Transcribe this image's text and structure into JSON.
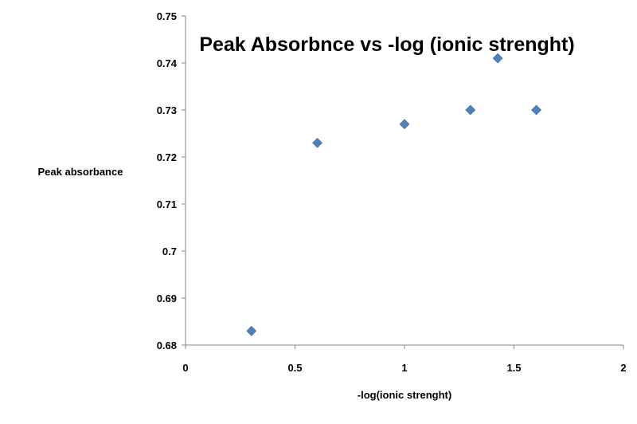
{
  "chart_data": {
    "type": "scatter",
    "title": "Peak Absorbnce vs -log (ionic strenght)",
    "xlabel": "-log(ionic strenght)",
    "ylabel": "Peak absorbance",
    "xlim": [
      0,
      2
    ],
    "ylim": [
      0.68,
      0.75
    ],
    "x_ticks": [
      0,
      0.5,
      1,
      1.5,
      2
    ],
    "x_tick_labels": [
      "0",
      "0.5",
      "1",
      "1.5",
      "2"
    ],
    "y_ticks": [
      0.68,
      0.69,
      0.7,
      0.71,
      0.72,
      0.73,
      0.74,
      0.75
    ],
    "y_tick_labels": [
      "0.68",
      "0.69",
      "0.7",
      "0.71",
      "0.72",
      "0.73",
      "0.74",
      "0.75"
    ],
    "grid": false,
    "legend": "none",
    "marker": "diamond",
    "marker_color": "#4F81BD",
    "series": [
      {
        "points": [
          {
            "x": 0.301,
            "y": 0.683
          },
          {
            "x": 0.602,
            "y": 0.723
          },
          {
            "x": 1.0,
            "y": 0.727
          },
          {
            "x": 1.301,
            "y": 0.73
          },
          {
            "x": 1.426,
            "y": 0.741
          },
          {
            "x": 1.602,
            "y": 0.73
          }
        ]
      }
    ]
  }
}
